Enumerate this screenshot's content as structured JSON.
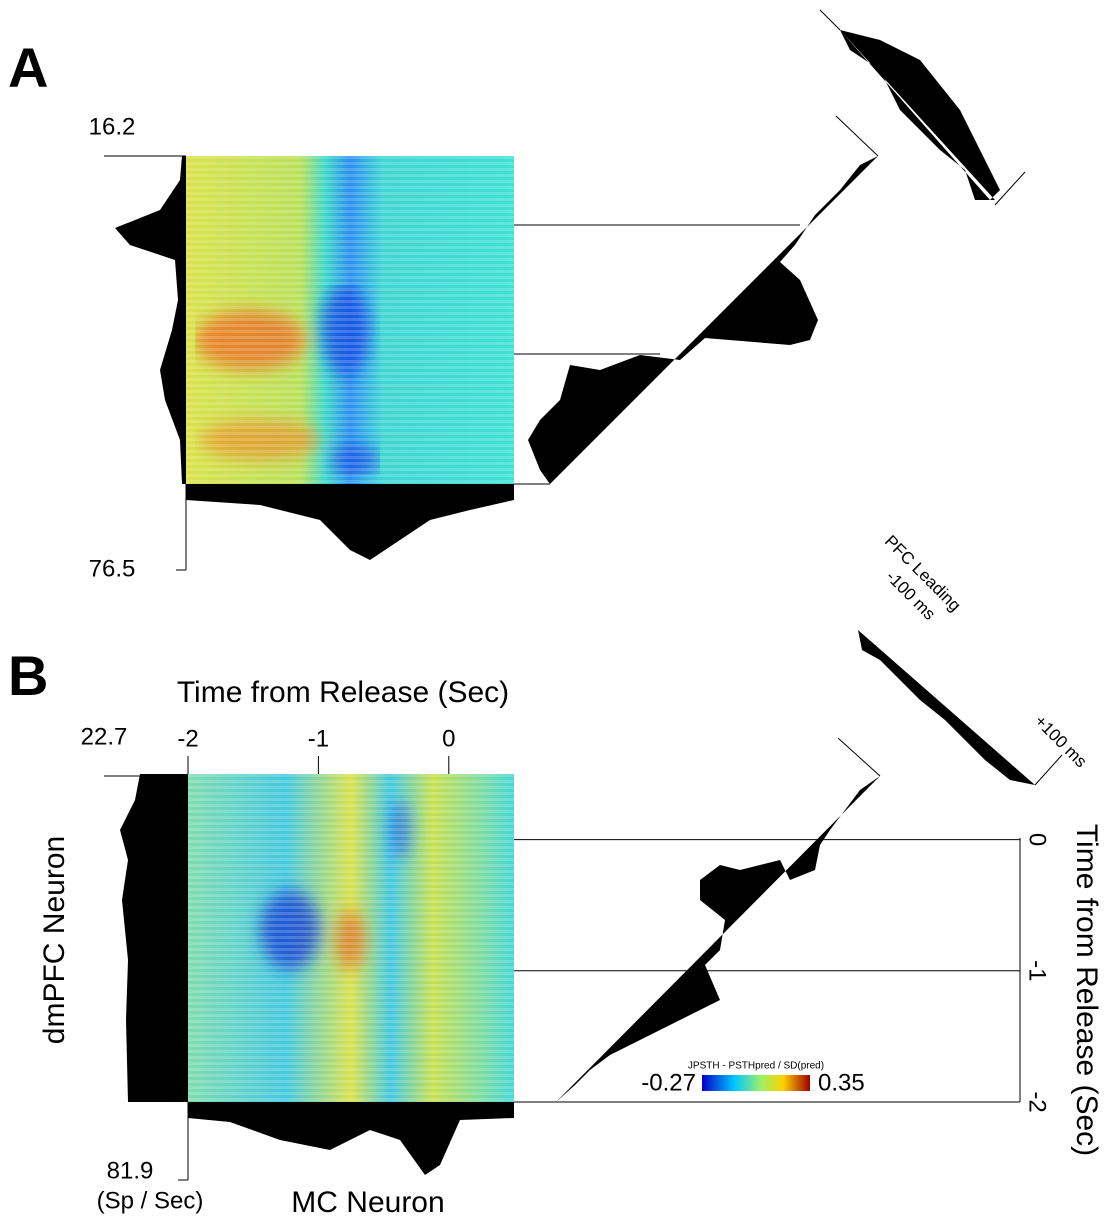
{
  "panel_a": {
    "label": "A",
    "rate_scale": [
      16.2,
      76.5
    ]
  },
  "panel_b": {
    "label": "B",
    "x_axis_title": "Time from Release (Sec)",
    "xlim": [
      -2,
      0.5
    ],
    "xticks": [
      -2,
      -1,
      0
    ],
    "rate_scale": [
      22.7,
      81.9
    ],
    "rate_unit": "(Sp / Sec)",
    "y_label": "dmPFC Neuron",
    "x_label": "MC Neuron",
    "diagonal_labels": {
      "leading": "PFC Leading",
      "minus": "-100 ms",
      "plus": "+100 ms"
    },
    "right_axis": {
      "title": "Time from Release (Sec)",
      "ylim": [
        -2,
        0.5
      ],
      "yticks": [
        0,
        -1,
        -2
      ]
    },
    "colorbar": {
      "title": "JPSTH - PSTHpred / SD(pred)",
      "min": -0.27,
      "max": 0.35
    }
  }
}
